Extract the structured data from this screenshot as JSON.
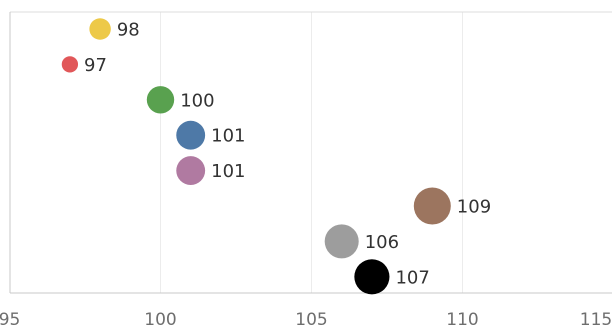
{
  "chart_data": {
    "type": "scatter",
    "title": "",
    "xlabel": "",
    "ylabel": "",
    "xlim": [
      95,
      115
    ],
    "x_ticks": [
      95,
      100,
      105,
      110,
      115
    ],
    "grid": {
      "vertical": true,
      "horizontal": false
    },
    "legend": "none",
    "points": [
      {
        "x": 98,
        "label": "98",
        "color": "#EDC948",
        "size": 0.58
      },
      {
        "x": 97,
        "label": "97",
        "color": "#E15759",
        "size": 0.44
      },
      {
        "x": 100,
        "label": "100",
        "color": "#59A14F",
        "size": 0.74
      },
      {
        "x": 101,
        "label": "101",
        "color": "#4E79A7",
        "size": 0.78
      },
      {
        "x": 101,
        "label": "101",
        "color": "#B07AA1",
        "size": 0.78
      },
      {
        "x": 109,
        "label": "109",
        "color": "#9C755F",
        "size": 1.0
      },
      {
        "x": 106,
        "label": "106",
        "color": "#9D9D9D",
        "size": 0.92
      },
      {
        "x": 107,
        "label": "107",
        "color": "#000000",
        "size": 0.95
      }
    ]
  }
}
